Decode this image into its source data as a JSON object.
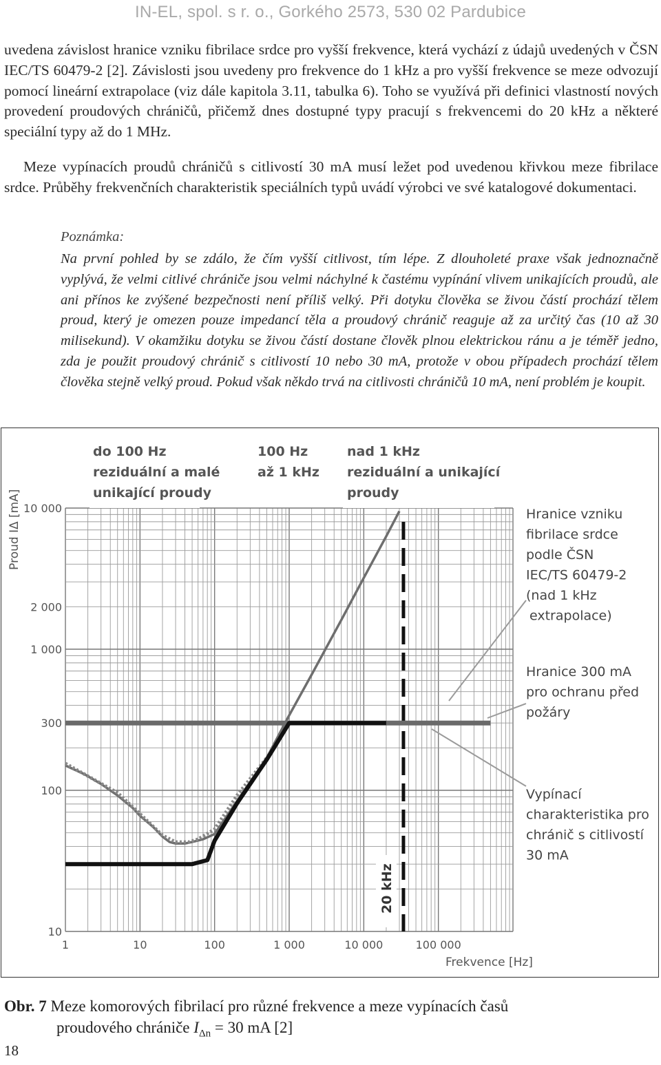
{
  "header": {
    "text": "IN-EL, spol. s r. o., Gorkého 2573, 530 02 Pardubice"
  },
  "paragraph1": "uvedena závislost hranice vzniku fibrilace srdce pro vyšší frekvence, která vychází z údajů uvedených v ČSN IEC/TS 60479-2 [2]. Závislosti jsou uvedeny pro frekvence do 1 kHz a pro vyšší frekvence se meze odvozují pomocí lineární extrapolace (viz dále kapitola 3.11, tabulka 6). Toho se využívá při definici vlastností nových provedení proudových chráničů, přičemž dnes dostupné typy pracují s frekvencemi do 20 kHz a některé speciální typy až do 1 MHz.",
  "paragraph2": "Meze vypínacích proudů chráničů s citlivostí 30 mA musí ležet pod uvedenou křivkou meze fibrilace srdce. Průběhy frekvenčních charakteristik speciálních typů uvádí výrobci ve své katalogové dokumentaci.",
  "note": {
    "title": "Poznámka:",
    "body": "Na první pohled by se zdálo, že čím vyšší citlivost, tím lépe. Z dlouholeté praxe však jednoznačně vyplývá, že velmi citlivé chrániče jsou velmi náchylné k častému vypínání vlivem unikajících proudů, ale ani přínos ke zvýšené bezpečnosti není příliš velký. Při dotyku člověka se živou částí prochází tělem proud, který je omezen pouze impedancí těla a proudový chránič reaguje až za určitý čas (10 až 30 milisekund). V okamžiku dotyku se živou částí dostane člověk plnou elektrickou ránu a je téměř jedno, zda je použit proudový chránič s citlivostí 10 nebo 30 mA, protože v obou případech prochází tělem člověka stejně velký proud. Pokud však někdo trvá na citlivosti chráničů 10 mA, není problém je koupit."
  },
  "chart_data": {
    "type": "line",
    "xscale": "log",
    "yscale": "log",
    "xlabel": "Frekvence [Hz]",
    "ylabel": "Proud IΔ [mA]",
    "xlim": [
      1,
      1000000
    ],
    "ylim": [
      10,
      10000
    ],
    "x_tick_labels": [
      {
        "value": 1,
        "label": "1"
      },
      {
        "value": 10,
        "label": "10"
      },
      {
        "value": 100,
        "label": "100"
      },
      {
        "value": 1000,
        "label": "1 000"
      },
      {
        "value": 10000,
        "label": "10 000"
      },
      {
        "value": 100000,
        "label": "100 000"
      }
    ],
    "y_tick_labels": [
      {
        "value": 10,
        "label": "10"
      },
      {
        "value": 100,
        "label": "100"
      },
      {
        "value": 300,
        "label": "300"
      },
      {
        "value": 1000,
        "label": "1 000"
      },
      {
        "value": 2000,
        "label": "2 000"
      },
      {
        "value": 10000,
        "label": "10 000"
      }
    ],
    "grid": true,
    "regions": [
      {
        "lines": [
          "do 100 Hz",
          "reziduální a malé",
          "unikající proudy"
        ]
      },
      {
        "lines": [
          "100 Hz",
          "až 1 kHz"
        ]
      },
      {
        "lines": [
          "nad 1 kHz",
          "reziduální a unikající",
          "proudy"
        ]
      }
    ],
    "series": [
      {
        "style": "solid-gray",
        "annotation": [
          "Hranice vzniku",
          "fibrilace srdce",
          "podle ČSN",
          "IEC/TS 60479-2",
          "(nad 1 kHz",
          "extrapolace)"
        ],
        "x": [
          1,
          1.8,
          3,
          5,
          8,
          10,
          15,
          20,
          25,
          30,
          40,
          50,
          70,
          100,
          200,
          500,
          1000,
          2000,
          5000,
          10000,
          20000,
          30000
        ],
        "y": [
          150,
          130,
          111,
          92,
          75,
          66,
          55,
          47,
          43,
          42,
          42,
          43,
          45,
          49,
          84,
          170,
          340,
          660,
          1610,
          3200,
          6300,
          9500
        ]
      },
      {
        "style": "dotted-gray",
        "x": [
          1,
          5,
          10,
          20,
          30,
          45,
          60,
          100,
          200,
          500,
          1000,
          2000,
          5000,
          10000,
          20000
        ],
        "y": [
          155,
          96,
          68,
          48,
          43,
          43,
          45,
          53,
          92,
          170,
          300,
          300,
          300,
          300,
          300
        ]
      },
      {
        "style": "thick-black",
        "annotation": [
          "Vypínací",
          "charakteristika pro",
          "chránič s citlivostí",
          "30 mA"
        ],
        "x": [
          1,
          10,
          20,
          30,
          50,
          80,
          100,
          200,
          500,
          1000,
          5000,
          10000,
          20000
        ],
        "y": [
          30,
          30,
          30,
          30,
          30,
          32,
          44,
          81,
          165,
          300,
          300,
          300,
          300
        ]
      },
      {
        "style": "thick-gray-horizontal",
        "annotation": [
          "Hranice 300 mA",
          "pro ochranu před",
          "požáry"
        ],
        "x": [
          1,
          500000
        ],
        "y": [
          300,
          300
        ]
      }
    ],
    "vertical_markers": [
      {
        "x": 20000,
        "label": "20 kHz",
        "style": "dashed-black"
      }
    ]
  },
  "caption": {
    "obr": "Obr. 7",
    "line1": "Meze komorových fibrilací pro různé frekvence a meze vypínacích časů",
    "line2_prefix": "proudového chrániče ",
    "line2_var": "I",
    "line2_sub": "Δn",
    "line2_suffix": " = 30 mA [2]"
  },
  "page_number": "18"
}
